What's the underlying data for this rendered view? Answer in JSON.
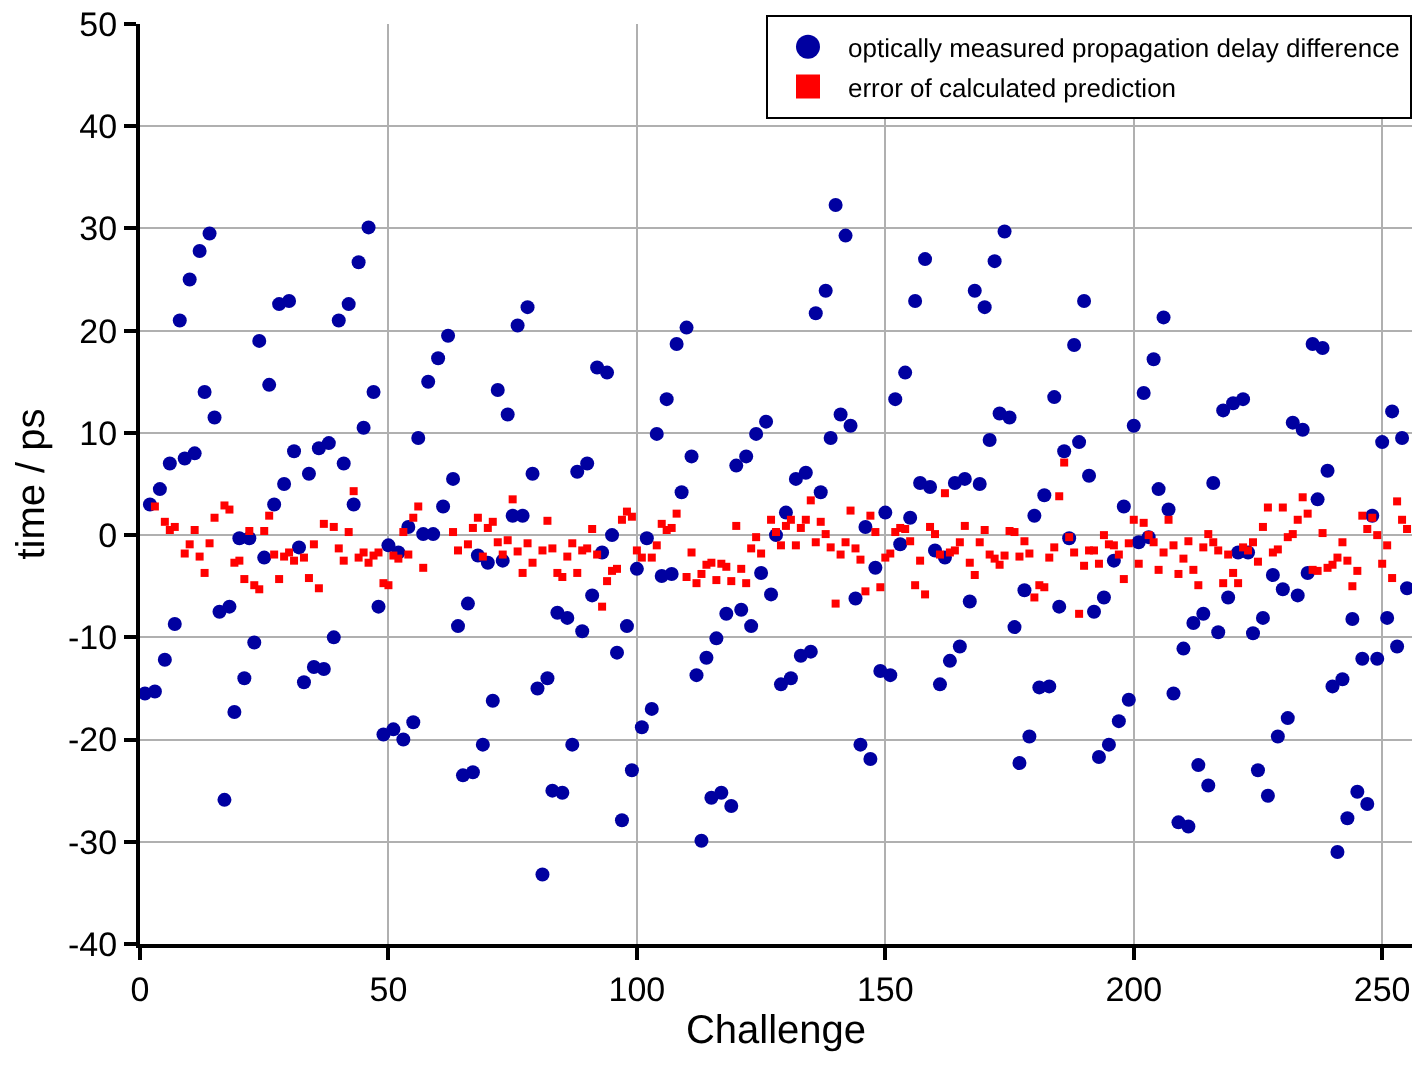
{
  "chart_data": {
    "type": "scatter",
    "xlabel": "Challenge",
    "ylabel": "time / ps",
    "xlim": [
      0,
      256
    ],
    "ylim": [
      -40,
      50
    ],
    "xticks": [
      0,
      50,
      100,
      150,
      200,
      250
    ],
    "yticks": [
      -40,
      -30,
      -20,
      -10,
      0,
      10,
      20,
      30,
      40,
      50
    ],
    "grid": true,
    "legend": "top right",
    "series": [
      {
        "name": "optically measured propagation delay difference",
        "color": "#0000a0",
        "marker": "circle",
        "x": [
          1,
          2,
          3,
          4,
          5,
          6,
          7,
          8,
          9,
          10,
          11,
          12,
          13,
          14,
          15,
          16,
          17,
          18,
          19,
          20,
          21,
          22,
          23,
          24,
          25,
          26,
          27,
          28,
          29,
          30,
          31,
          32,
          33,
          34,
          35,
          36,
          37,
          38,
          39,
          40,
          41,
          42,
          43,
          44,
          45,
          46,
          47,
          48,
          49,
          50,
          51,
          52,
          53,
          54,
          55,
          56,
          57,
          58,
          59,
          60,
          61,
          62,
          63,
          64,
          65,
          66,
          67,
          68,
          69,
          70,
          71,
          72,
          73,
          74,
          75,
          76,
          77,
          78,
          79,
          80,
          81,
          82,
          83,
          84,
          85,
          86,
          87,
          88,
          89,
          90,
          91,
          92,
          93,
          94,
          95,
          96,
          97,
          98,
          99,
          100,
          101,
          102,
          103,
          104,
          105,
          106,
          107,
          108,
          109,
          110,
          111,
          112,
          113,
          114,
          115,
          116,
          117,
          118,
          119,
          120,
          121,
          122,
          123,
          124,
          125,
          126,
          127,
          128,
          129,
          130,
          131,
          132,
          133,
          134,
          135,
          136,
          137,
          138,
          139,
          140,
          141,
          142,
          143,
          144,
          145,
          146,
          147,
          148,
          149,
          150,
          151,
          152,
          153,
          154,
          155,
          156,
          157,
          158,
          159,
          160,
          161,
          162,
          163,
          164,
          165,
          166,
          167,
          168,
          169,
          170,
          171,
          172,
          173,
          174,
          175,
          176,
          177,
          178,
          179,
          180,
          181,
          182,
          183,
          184,
          185,
          186,
          187,
          188,
          189,
          190,
          191,
          192,
          193,
          194,
          195,
          196,
          197,
          198,
          199,
          200,
          201,
          202,
          203,
          204,
          205,
          206,
          207,
          208,
          209,
          210,
          211,
          212,
          213,
          214,
          215,
          216,
          217,
          218,
          219,
          220,
          221,
          222,
          223,
          224,
          225,
          226,
          227,
          228,
          229,
          230,
          231,
          232,
          233,
          234,
          235,
          236,
          237,
          238,
          239,
          240,
          241,
          242,
          243,
          244,
          245,
          246,
          247,
          248,
          249,
          250,
          251,
          252,
          253,
          254,
          255
        ],
        "values": [
          -15.5,
          3,
          -15.3,
          4.5,
          -12.2,
          7,
          -8.7,
          21,
          7.5,
          25,
          8,
          27.8,
          14,
          29.5,
          11.5,
          -7.5,
          -25.9,
          -7,
          -17.3,
          -0.3,
          -14,
          -0.3,
          -10.5,
          19,
          -2.2,
          14.7,
          3,
          22.6,
          5,
          22.9,
          8.2,
          -1.2,
          -14.4,
          6,
          -12.9,
          8.5,
          -13.1,
          9,
          -10,
          21,
          7,
          22.6,
          3,
          26.7,
          10.5,
          30.1,
          14,
          -7,
          -19.5,
          -1,
          -19,
          -1.7,
          -20,
          0.8,
          -18.3,
          9.5,
          0.1,
          15,
          0.1,
          17.3,
          2.8,
          19.5,
          5.5,
          -8.9,
          -23.5,
          -6.7,
          -23.2,
          -2,
          -20.5,
          -2.7,
          -16.2,
          14.2,
          -2.5,
          11.8,
          1.9,
          20.5,
          1.9,
          22.3,
          6,
          -15,
          -33.2,
          -14,
          -25,
          -7.6,
          -25.2,
          -8.1,
          -20.5,
          6.2,
          -9.4,
          7,
          -5.9,
          16.4,
          -1.7,
          15.9,
          0,
          -11.5,
          -27.9,
          -8.9,
          -23,
          -3.3,
          -18.8,
          -0.3,
          -17,
          9.9,
          -4,
          13.3,
          -3.8,
          18.7,
          4.2,
          20.3,
          7.7,
          -13.7,
          -29.9,
          -12,
          -25.7,
          -10.1,
          -25.2,
          -7.7,
          -26.5,
          6.8,
          -7.3,
          7.7,
          -8.9,
          9.9,
          -3.7,
          11.1,
          -5.8,
          0,
          -14.6,
          2.2,
          -14,
          5.5,
          -11.8,
          6.1,
          -11.4,
          21.7,
          4.2,
          23.9,
          9.5,
          32.3,
          11.8,
          29.3,
          10.7,
          -6.2,
          -20.5,
          0.8,
          -21.9,
          -3.2,
          -13.3,
          2.2,
          -13.7,
          13.3,
          -0.9,
          15.9,
          1.7,
          22.9,
          5.1,
          27,
          4.7,
          -1.5,
          -14.6,
          -2.2,
          -12.3,
          5.1,
          -10.9,
          5.5,
          -6.5,
          23.9,
          5,
          22.3,
          9.3,
          26.8,
          11.9,
          29.7,
          11.5,
          -9,
          -22.3,
          -5.4,
          -19.7,
          1.9,
          -14.9,
          3.9,
          -14.8,
          13.5,
          -7,
          8.2,
          -0.3,
          18.6,
          9.1,
          22.9,
          5.8,
          -7.5,
          -21.7,
          -6.1,
          -20.5,
          -2.5,
          -18.2,
          2.8,
          -16.1,
          10.7,
          -0.7,
          13.9,
          -0.2,
          17.2,
          4.5,
          21.3,
          2.5,
          -15.5,
          -28.1,
          -11.1,
          -28.5,
          -8.6,
          -22.5,
          -7.7,
          -24.5,
          5.1,
          -9.5,
          12.2,
          -6.1,
          12.9,
          -1.7,
          13.3,
          -1.7,
          -9.6,
          -23,
          -8.1,
          -25.5,
          -3.9,
          -19.7,
          -5.3,
          -17.9,
          11,
          -5.9,
          10.3,
          -3.7,
          18.7,
          3.5,
          18.3,
          6.3,
          -14.8,
          -31,
          -14.1,
          -27.7,
          -8.2,
          -25.1,
          -12.1,
          -26.3,
          1.9,
          -12.1,
          9.1,
          -8.1,
          12.1,
          -10.9,
          9.5,
          -5.2
        ]
      },
      {
        "name": "error of calculated prediction",
        "color": "#ff0000",
        "marker": "square",
        "x": [
          3,
          5,
          6,
          7,
          9,
          10,
          11,
          12,
          13,
          14,
          15,
          17,
          18,
          19,
          20,
          21,
          22,
          23,
          24,
          25,
          26,
          27,
          28,
          29,
          30,
          31,
          33,
          34,
          35,
          36,
          37,
          39,
          40,
          41,
          42,
          43,
          44,
          45,
          46,
          47,
          48,
          49,
          50,
          51,
          52,
          53,
          54,
          55,
          56,
          57,
          63,
          64,
          66,
          67,
          68,
          69,
          70,
          71,
          72,
          73,
          74,
          75,
          76,
          77,
          78,
          79,
          81,
          82,
          83,
          84,
          85,
          86,
          87,
          88,
          89,
          90,
          91,
          92,
          93,
          94,
          95,
          96,
          97,
          98,
          99,
          100,
          101,
          103,
          104,
          105,
          106,
          107,
          108,
          110,
          111,
          112,
          113,
          114,
          115,
          116,
          117,
          118,
          119,
          120,
          121,
          122,
          123,
          124,
          125,
          127,
          128,
          129,
          130,
          131,
          132,
          133,
          134,
          135,
          136,
          137,
          138,
          139,
          140,
          141,
          142,
          143,
          144,
          145,
          146,
          147,
          148,
          149,
          150,
          151,
          152,
          153,
          154,
          155,
          156,
          157,
          158,
          159,
          160,
          161,
          162,
          163,
          164,
          165,
          166,
          167,
          168,
          169,
          170,
          171,
          172,
          173,
          174,
          175,
          176,
          177,
          178,
          179,
          180,
          181,
          182,
          183,
          184,
          185,
          186,
          187,
          188,
          189,
          190,
          191,
          192,
          193,
          194,
          195,
          196,
          197,
          198,
          199,
          200,
          201,
          202,
          203,
          204,
          205,
          206,
          207,
          208,
          209,
          210,
          211,
          212,
          213,
          214,
          215,
          216,
          217,
          218,
          219,
          220,
          221,
          222,
          223,
          224,
          225,
          226,
          227,
          228,
          229,
          230,
          231,
          232,
          233,
          234,
          235,
          236,
          237,
          238,
          239,
          240,
          241,
          242,
          243,
          244,
          245,
          246,
          247,
          248,
          249,
          250,
          251,
          252,
          253,
          254,
          255
        ],
        "values": [
          2.8,
          1.3,
          0.5,
          0.8,
          -1.8,
          -0.9,
          0.5,
          -2.1,
          -3.7,
          -0.8,
          1.7,
          2.9,
          2.5,
          -2.7,
          -2.5,
          -4.3,
          0.4,
          -4.9,
          -5.3,
          0.4,
          1.9,
          -1.9,
          -4.3,
          -2.1,
          -1.7,
          -2.5,
          -2.2,
          -4.2,
          -0.9,
          -5.2,
          1.1,
          0.8,
          -1.3,
          -2.5,
          0.3,
          4.3,
          -2.2,
          -1.7,
          -2.7,
          -2,
          -1.7,
          -4.7,
          -4.9,
          -2,
          -2.3,
          0.3,
          -1.9,
          1.7,
          2.8,
          -3.2,
          0.3,
          -1.5,
          -0.9,
          0.7,
          1.7,
          -2.1,
          0.7,
          1.3,
          -0.7,
          -1.9,
          -0.5,
          3.5,
          -1.6,
          -3.7,
          -0.8,
          -2.7,
          -1.5,
          1.4,
          -1.3,
          -3.7,
          -4.1,
          -2.1,
          -0.8,
          -3.7,
          -1.5,
          -1.3,
          0.6,
          -1.9,
          -7,
          -4.5,
          -3.5,
          -3.3,
          1.5,
          2.3,
          1.8,
          -1.5,
          -2.2,
          -2.2,
          -1,
          1.1,
          0.5,
          0.7,
          2.1,
          -4.1,
          -1.7,
          -4.7,
          -3.8,
          -2.9,
          -2.7,
          -4.4,
          -2.8,
          -3.1,
          -4.5,
          0.9,
          -3.3,
          -4.7,
          -1.3,
          -0.2,
          -1.8,
          1.5,
          0.3,
          -1,
          0.9,
          1.5,
          -1,
          0.7,
          1.5,
          3.4,
          -0.7,
          1.3,
          0.1,
          -1.2,
          -6.7,
          -1.9,
          -0.7,
          2.4,
          -1.3,
          -2.4,
          -5.5,
          1.9,
          0.3,
          -5.1,
          -2.2,
          -1.8,
          0.3,
          0.7,
          0.6,
          -0.6,
          -4.9,
          -2.5,
          -5.8,
          0.8,
          0.1,
          -1.9,
          4.1,
          -1.7,
          -1.5,
          -0.7,
          0.9,
          -2.7,
          -3.9,
          -0.7,
          0.5,
          -1.9,
          -2.3,
          -2.9,
          -2,
          0.4,
          0.3,
          -2.1,
          -0.6,
          -1.8,
          -6.1,
          -4.9,
          -5.1,
          -2.2,
          -1.2,
          3.8,
          7.1,
          -0.2,
          -1.7,
          -7.7,
          -3,
          -1.5,
          -1.5,
          -2.8,
          0,
          -0.9,
          -1,
          -1.9,
          -4.3,
          -0.8,
          1.5,
          -2.8,
          1.2,
          0,
          -0.7,
          -3.4,
          -1.7,
          1.5,
          -1,
          -3.8,
          -2.3,
          -0.6,
          -3.4,
          -4.9,
          -1.2,
          0.1,
          -0.7,
          -1.5,
          -4.7,
          -1.9,
          -3.7,
          -4.7,
          -1.2,
          -1.5,
          -0.7,
          -2.6,
          0.8,
          2.7,
          -1.7,
          -1.4,
          2.7,
          -0.2,
          0.1,
          1.5,
          3.7,
          2.1,
          -3.4,
          -3.5,
          0.2,
          -3.2,
          -2.9,
          -2.2,
          -0.7,
          -2.5,
          -5,
          -3.5,
          1.9,
          0.6,
          1.7,
          0,
          -2.8,
          -1,
          -4.2,
          3.3,
          1.5,
          0.6
        ]
      }
    ]
  }
}
